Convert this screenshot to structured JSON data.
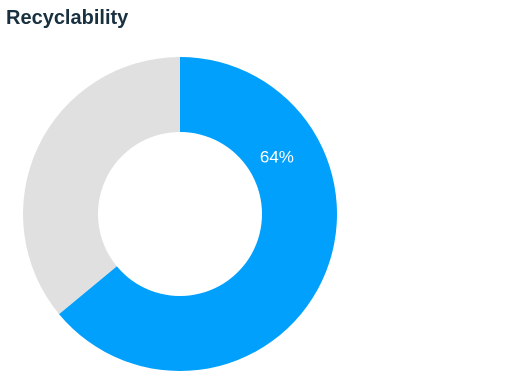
{
  "chart_data": {
    "type": "pie",
    "title": "Recyclability",
    "donut": true,
    "slices": [
      {
        "name": "",
        "value": 64,
        "label": "64%",
        "color": "#00a0fc"
      },
      {
        "name": "",
        "value": 36,
        "label": "",
        "color": "#e0e0e0"
      }
    ],
    "legend": "none"
  }
}
